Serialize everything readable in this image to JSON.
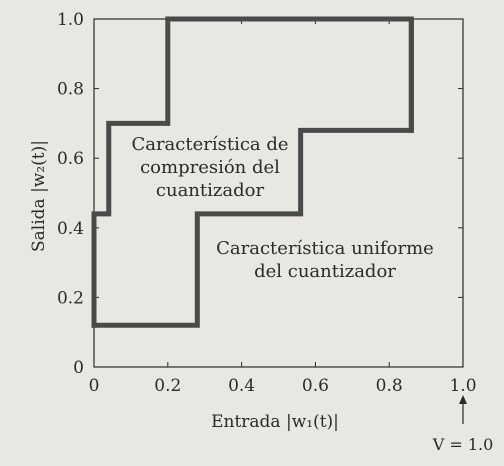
{
  "chart_data": {
    "type": "line",
    "xlabel": "Entrada |w₁(t)|",
    "ylabel": "Salida |w₂(t)|",
    "xlim": [
      0,
      1.0
    ],
    "ylim": [
      0,
      1.0
    ],
    "x_ticks": [
      "0",
      "0.2",
      "0.4",
      "0.6",
      "0.8",
      "1.0"
    ],
    "y_ticks": [
      "0",
      "0.2",
      "0.4",
      "0.6",
      "0.8",
      "1.0"
    ],
    "grid": false,
    "annotations": {
      "compression": [
        "Característica de",
        "compresión del",
        "cuantizador"
      ],
      "uniform": [
        "Característica uniforme",
        "del cuantizador"
      ],
      "v_label": "V = 1.0"
    },
    "series": [
      {
        "x": [
          0,
          0,
          0.04,
          0.04,
          0.2,
          0.2,
          0.86,
          0.86
        ],
        "y": [
          0.12,
          0.44,
          0.44,
          0.7,
          0.7,
          1.0,
          1.0,
          0.68
        ]
      },
      {
        "x": [
          0,
          0.28,
          0.28,
          0.56,
          0.56,
          0.86,
          0.86
        ],
        "y": [
          0.12,
          0.12,
          0.44,
          0.44,
          0.68,
          0.68,
          1.0
        ]
      }
    ],
    "line_color": "#4a4a4a",
    "axis_color": "#2a2a2a"
  }
}
